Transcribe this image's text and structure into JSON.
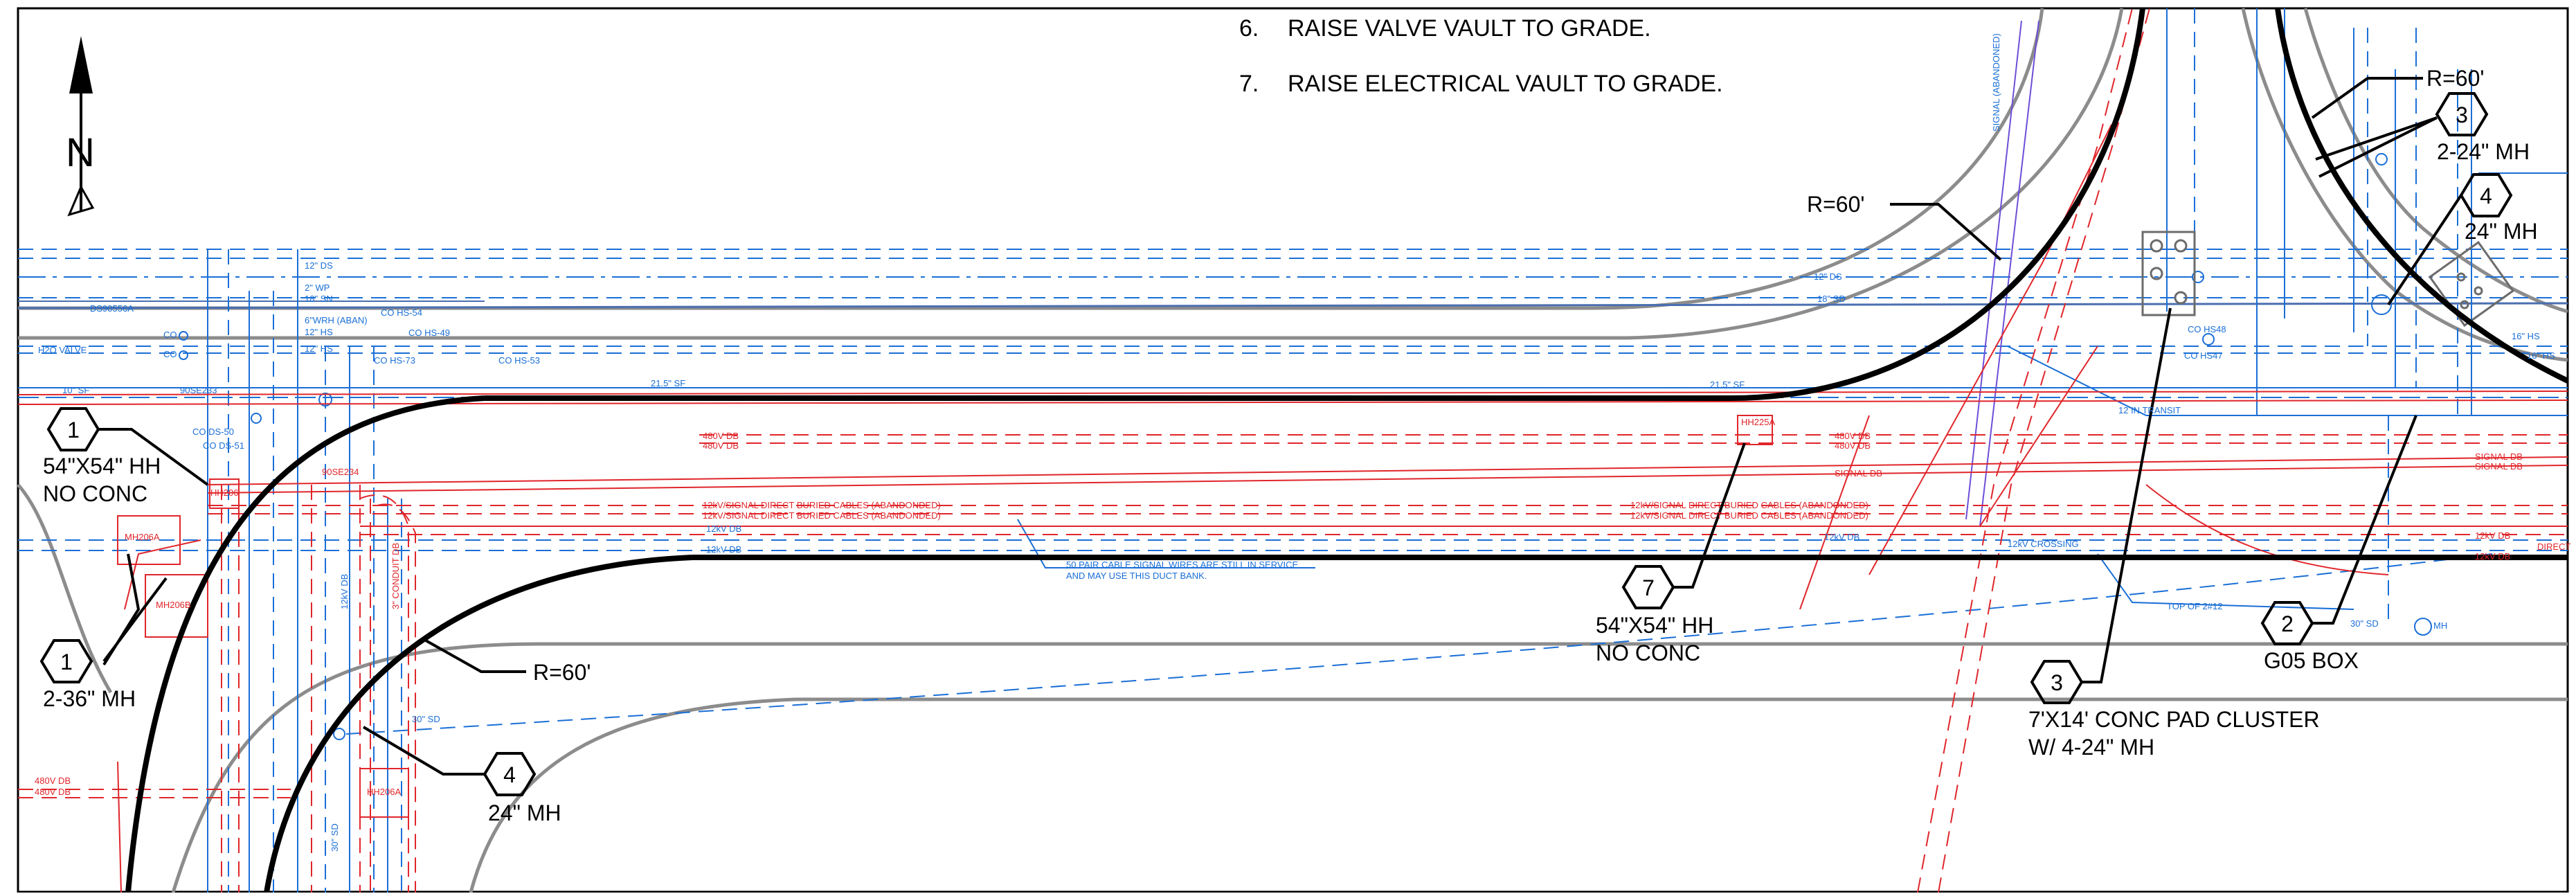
{
  "colors": {
    "road": "#000000",
    "gray_road": "#8c8c8c",
    "utility_blue": "#1a6fd6",
    "utility_red": "#e0262b",
    "purple": "#6d4fd6",
    "text": "#000000"
  },
  "north_arrow": {
    "label": "N"
  },
  "notes": [
    {
      "number": "6.",
      "text": "RAISE VALVE VAULT TO GRADE."
    },
    {
      "number": "7.",
      "text": "RAISE ELECTRICAL VAULT TO GRADE."
    }
  ],
  "callouts": [
    {
      "id": "c1a",
      "tag": "1",
      "lines": [
        "54\"X54\" HH",
        "NO CONC"
      ]
    },
    {
      "id": "c1b",
      "tag": "1",
      "lines": [
        "2-36\" MH"
      ]
    },
    {
      "id": "c4a",
      "tag": "4",
      "lines": [
        "24\" MH"
      ]
    },
    {
      "id": "c7",
      "tag": "7",
      "lines": [
        "54\"X54\" HH",
        "NO CONC"
      ]
    },
    {
      "id": "c3a",
      "tag": "3",
      "lines": [
        "7'X14' CONC PAD CLUSTER",
        "W/ 4-24\" MH"
      ]
    },
    {
      "id": "c2",
      "tag": "2",
      "lines": [
        "G05 BOX"
      ]
    },
    {
      "id": "c3b",
      "tag": "3",
      "lines": [
        "2-24\" MH"
      ]
    },
    {
      "id": "c4b",
      "tag": "4",
      "lines": [
        "24\" MH"
      ]
    }
  ],
  "radius_labels": {
    "r1": "R=60'",
    "r2": "R=60'",
    "r3": "R=60'"
  },
  "utility_labels": {
    "sd12_1": "12\" DS",
    "sd12_2": "12\" DS",
    "wp2": "2\" WP",
    "sn18": "18\" SN",
    "wrh6": "6\"WRH (ABAN)",
    "hs12_1": "12\" HS",
    "hs12_2": "12\" HS",
    "co_hs54": "CO HS-54",
    "co_hs49": "CO HS-49",
    "co_hs73": "CO HS-73",
    "co_hs53": "CO HS-53",
    "ds90556a": "DS90556A",
    "h2o_valve": "H2O VALVE",
    "co_1": "CO",
    "co_2": "CO",
    "sf10": "10\" SF",
    "e90se233": "90SE233",
    "co_ds50": "CO DS-50",
    "co_ds51": "CO DS-51",
    "sf21_5a": "21.5\" SF",
    "sf21_5b": "21.5\" SF",
    "hh206": "HH206",
    "mh206a": "MH206A",
    "mh206b": "MH206B",
    "e90se234": "90SE234",
    "v480_1": "480V DB",
    "v480_2": "480V DB",
    "v480_3": "480V DB",
    "v480_4": "480V DB",
    "v480_5": "480V DB",
    "v480_6": "480V DB",
    "kv12sig_1": "12kV/SIGNAL DIRECT BURIED CABLES (ABANDONDED)",
    "kv12sig_2": "12kV/SIGNAL DIRECT BURIED CABLES (ABANDONDED)",
    "kv12sig_3": "12kV/SIGNAL DIRECT BURIED CABLES (ABANDONDED)",
    "kv12sig_4": "12kV/SIGNAL DIRECT BURIED CABLES (ABANDONDED)",
    "kv12db_1": "12kV DB",
    "kv12db_2": "12kV DB",
    "kv12db_3": "12kV DB",
    "kv12db_4": "12kV DB",
    "kv12db_5": "12kV DB",
    "signal_db_1": "SIGNAL DB",
    "signal_db_2": "SIGNAL DB",
    "signal_db_3": "SIGNAL DB",
    "direct": "DIRECT",
    "kv12_crossing": "12kV CROSSING",
    "pair50_1": "50 PAIR CABLE SIGNAL WIRES ARE STILL IN SERVICE",
    "pair50_2": "AND MAY USE THIS DUCT BANK.",
    "hh225a": "HH225A",
    "conduit_db": "3\" CONDUIT DB",
    "kv12db_v": "12kV DB",
    "sd30_1": "30\" SD",
    "sd30_2": "30\" SD",
    "mh": "MH",
    "hh206a": "HH206A",
    "co_hs48": "CO HS48",
    "co_hs47": "CO HS47",
    "in12_transit": "12 IN TRANSIT",
    "top_of": "TOP OF 2#12",
    "signal_aband": "SIGNAL (ABANDONED)",
    "hs16_1": "16\" HS",
    "hs16_2": "16\" HS",
    "sd18": "18\" SD",
    "sd30_3": "30\" SD"
  }
}
